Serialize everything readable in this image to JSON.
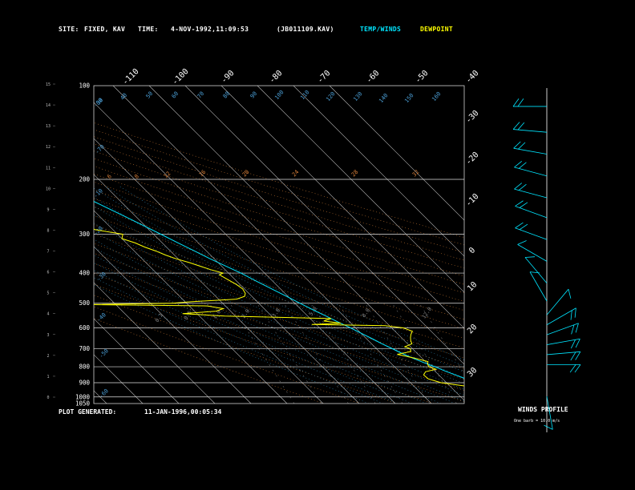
{
  "header": {
    "site_label": "SITE:",
    "site_value": "FIXED, KAV",
    "time_label": "TIME:",
    "time_value": "4-NOV-1992,11:09:53",
    "file_id": "(JB011109.KAV)",
    "temp_winds_label": "TEMP/WINDS",
    "dewpoint_label": "DEWPOINT",
    "temp_color": "#00e5ff",
    "dewpoint_color": "#ffff00"
  },
  "footer": {
    "generated_label": "PLOT GENERATED:",
    "generated_value": "11-JAN-1996,00:05:34"
  },
  "wind_panel": {
    "title": "WINDS PROFILE",
    "scale_note": "One barb = 10.0 m/s"
  },
  "chart_data": {
    "type": "line",
    "y_scale": "log-pressure",
    "pressure_ticks": [
      "100",
      "200",
      "300",
      "400",
      "500",
      "600",
      "700",
      "800",
      "900",
      "1000",
      "1050"
    ],
    "pressure_values": [
      100,
      200,
      300,
      400,
      500,
      600,
      700,
      800,
      900,
      1000,
      1050
    ],
    "height_km_ticks": [
      "0",
      "1",
      "2",
      "3",
      "4",
      "5",
      "6",
      "7",
      "8",
      "9",
      "10",
      "11",
      "12",
      "13",
      "14",
      "15"
    ],
    "top_temp_ticks": [
      "-110",
      "-100",
      "-90",
      "-80",
      "-70",
      "-60",
      "-50",
      "-40"
    ],
    "right_temp_ticks": [
      "-30",
      "-20",
      "-10",
      "0",
      "10",
      "20",
      "30"
    ],
    "right_temp_values": [
      -30,
      -20,
      -10,
      0,
      10,
      20,
      30
    ],
    "dry_adiabat_labels": [
      "30",
      "40",
      "50",
      "60",
      "70",
      "80",
      "90",
      "100",
      "110",
      "120",
      "130",
      "140",
      "150",
      "160"
    ],
    "mixing_ratio_labels": [
      "0.1",
      "0.5",
      "1.0",
      "2.0",
      "3.0",
      "5.0",
      "8.0",
      "12.0"
    ],
    "lcl_labels": [
      "6",
      "8",
      "12",
      "16",
      "20",
      "24",
      "28",
      "32"
    ],
    "side_labels": [
      "-10",
      "-20",
      "-30",
      "-40",
      "-50",
      "-60",
      "-70",
      "-80"
    ],
    "series": [
      {
        "name": "TEMP/WINDS",
        "color": "#00e5ff",
        "pressure": [
          1000,
          975,
          950,
          925,
          900,
          875,
          850,
          825,
          800,
          775,
          750,
          725,
          700,
          675,
          650,
          625,
          600,
          575,
          550,
          525,
          500,
          475,
          450,
          425,
          400,
          380,
          360,
          340,
          320,
          300,
          280,
          260,
          240,
          220,
          200,
          180,
          160,
          140,
          120,
          100
        ],
        "temperature": [
          25.5,
          23.6,
          21.8,
          19.9,
          18.2,
          16.4,
          14.6,
          12.8,
          11.2,
          9.2,
          7.4,
          5.8,
          4.4,
          2.9,
          1.6,
          0.1,
          -1.4,
          -3.2,
          -4.9,
          -6.8,
          -8.6,
          -10.4,
          -12.4,
          -14.5,
          -16.6,
          -18.8,
          -21.1,
          -23.3,
          -25.6,
          -28.0,
          -30.6,
          -33.5,
          -36.7,
          -40.1,
          -44.0,
          -48.0,
          -52.4,
          -56.0,
          -57.0,
          -58.0
        ]
      },
      {
        "name": "DEWPOINT",
        "color": "#ffff00",
        "pressure": [
          1000,
          975,
          950,
          925,
          900,
          875,
          850,
          830,
          815,
          800,
          785,
          770,
          750,
          730,
          715,
          700,
          690,
          675,
          660,
          645,
          630,
          615,
          600,
          590,
          585,
          580,
          570,
          560,
          550,
          540,
          530,
          520,
          510,
          505,
          500,
          495,
          485,
          475,
          465,
          450,
          435,
          420,
          405,
          400,
          390,
          380,
          370,
          360,
          350,
          340,
          330,
          320,
          310,
          300,
          290,
          280,
          270,
          260,
          250,
          240,
          230,
          220,
          210,
          200,
          190,
          180,
          170,
          160,
          150,
          140,
          130,
          120,
          110,
          100
        ],
        "temperature": [
          23.6,
          21.8,
          18.8,
          14.8,
          8.5,
          6.0,
          5.8,
          7.2,
          10.8,
          9.5,
          9.9,
          10.7,
          7.9,
          4.2,
          8.7,
          9.4,
          8.4,
          11.2,
          11.7,
          12.5,
          13.5,
          14.8,
          13.2,
          8.8,
          -11.2,
          -2.8,
          -6.9,
          -4.2,
          -33.0,
          -44.0,
          -33.9,
          -31.3,
          -35.0,
          -68.3,
          -44.0,
          -38.8,
          -25.0,
          -22.0,
          -21.0,
          -20.5,
          -21.0,
          -22.0,
          -23.0,
          -21.5,
          -24.0,
          -26.0,
          -28.0,
          -30.5,
          -32.5,
          -34.0,
          -36.0,
          -37.5,
          -40.0,
          -38.5,
          -45.0,
          -46.0,
          -50.0,
          -55.0,
          -56.5,
          -58.0,
          -59.5,
          -59.0,
          -61.0,
          -67.0,
          -71.0,
          -77.0,
          -82.0,
          -84.0,
          -86.0,
          -85.0,
          -85.5,
          -89.0,
          -96.0,
          -100.0
        ]
      }
    ],
    "winds": [
      {
        "height_km": 14.8,
        "dir": 270,
        "speed": 22
      },
      {
        "height_km": 13.5,
        "dir": 275,
        "speed": 20
      },
      {
        "height_km": 12.4,
        "dir": 280,
        "speed": 18
      },
      {
        "height_km": 11.3,
        "dir": 285,
        "speed": 16
      },
      {
        "height_km": 10.2,
        "dir": 285,
        "speed": 18
      },
      {
        "height_km": 9.2,
        "dir": 290,
        "speed": 20
      },
      {
        "height_km": 8.1,
        "dir": 290,
        "speed": 24
      },
      {
        "height_km": 7.0,
        "dir": 300,
        "speed": 12
      },
      {
        "height_km": 5.9,
        "dir": 320,
        "speed": 8
      },
      {
        "height_km": 5.0,
        "dir": 330,
        "speed": 6
      },
      {
        "height_km": 4.3,
        "dir": 40,
        "speed": 14
      },
      {
        "height_km": 3.8,
        "dir": 60,
        "speed": 16
      },
      {
        "height_km": 3.3,
        "dir": 70,
        "speed": 18
      },
      {
        "height_km": 2.8,
        "dir": 80,
        "speed": 20
      },
      {
        "height_km": 2.3,
        "dir": 85,
        "speed": 22
      },
      {
        "height_km": 1.8,
        "dir": 90,
        "speed": 18
      },
      {
        "height_km": 0.2,
        "dir": 170,
        "speed": 4
      }
    ]
  }
}
